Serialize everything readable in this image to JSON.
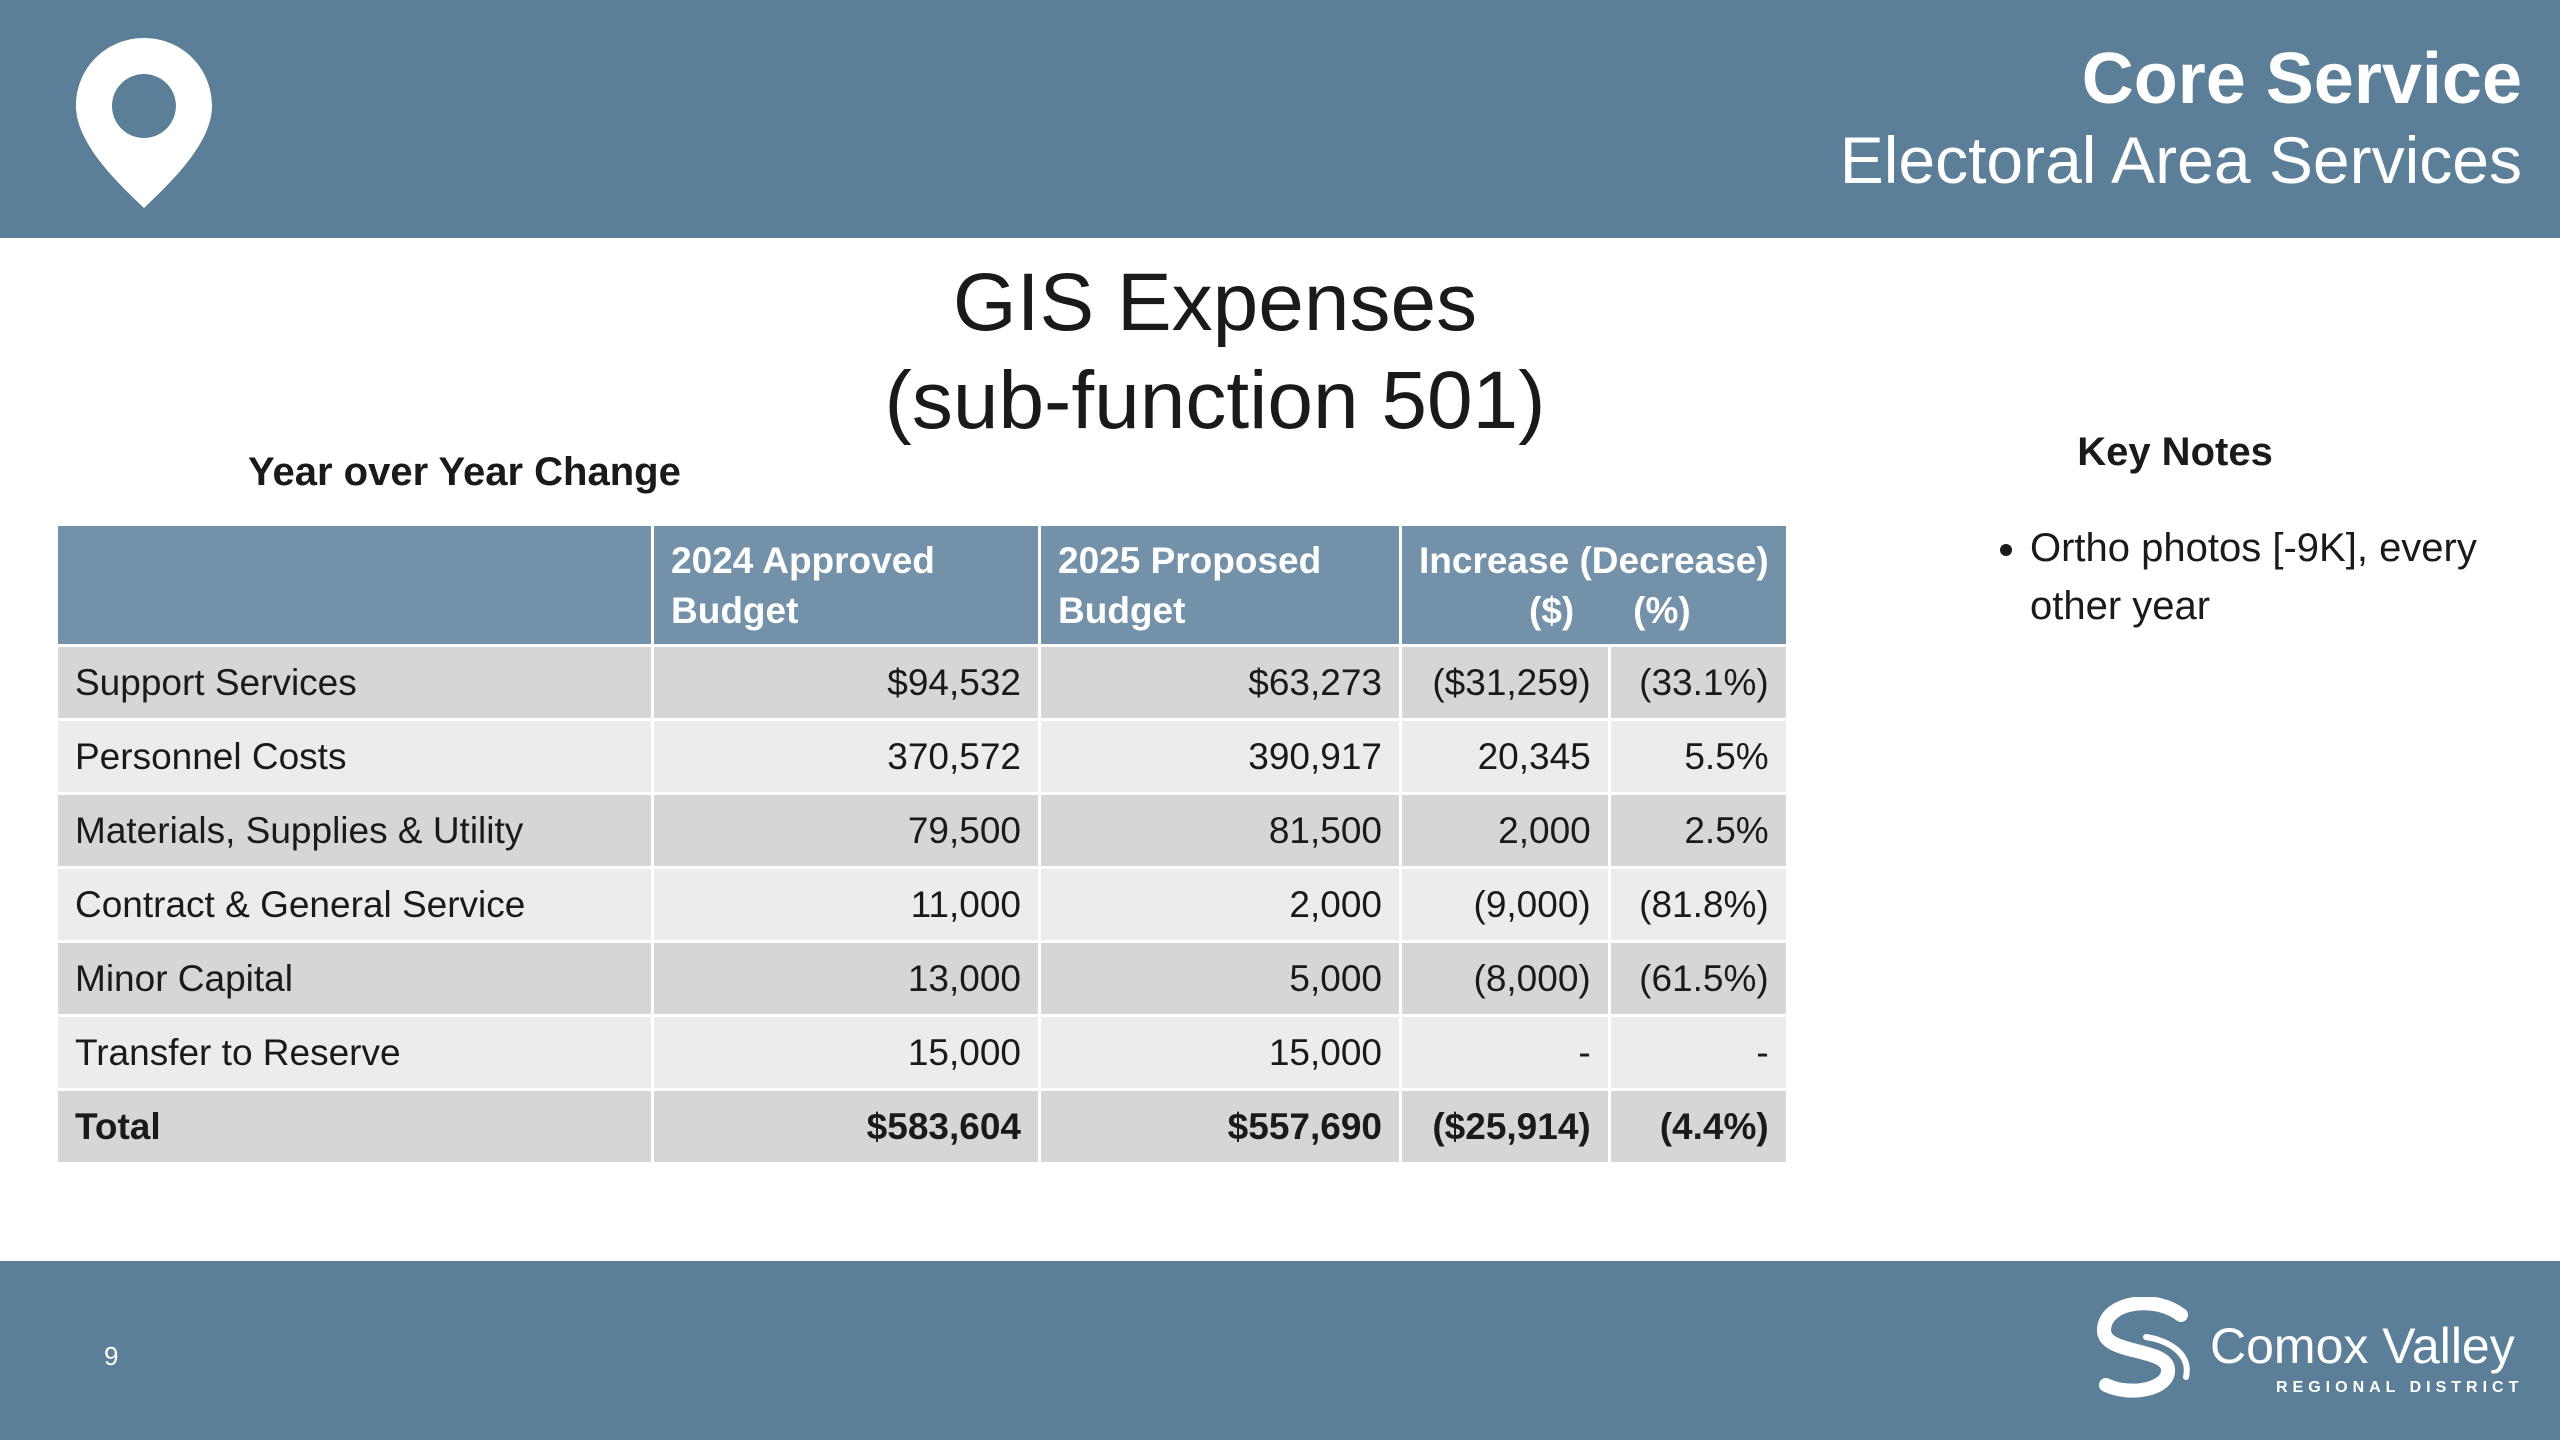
{
  "header": {
    "title": "Core Service",
    "subtitle": "Electoral Area Services"
  },
  "title": "GIS Expenses",
  "subtitle": "(sub-function 501)",
  "table": {
    "caption": "Year over Year Change",
    "columns": [
      "2024 Approved Budget",
      "2025 Proposed Budget",
      "Increase (Decrease)"
    ],
    "subcolumns": [
      "($)",
      "(%)"
    ],
    "rows": [
      [
        "Support Services",
        "$94,532",
        "$63,273",
        "($31,259)",
        "(33.1%)"
      ],
      [
        "Personnel Costs",
        "370,572",
        "390,917",
        "20,345",
        "5.5%"
      ],
      [
        "Materials, Supplies & Utility",
        "79,500",
        "81,500",
        "2,000",
        "2.5%"
      ],
      [
        "Contract & General Service",
        "11,000",
        "2,000",
        "(9,000)",
        "(81.8%)"
      ],
      [
        "Minor Capital",
        "13,000",
        "5,000",
        "(8,000)",
        "(61.5%)"
      ],
      [
        "Transfer to Reserve",
        "15,000",
        "15,000",
        "-",
        "-"
      ],
      [
        "Total",
        "$583,604",
        "$557,690",
        "($25,914)",
        "(4.4%)"
      ]
    ]
  },
  "notes": {
    "title": "Key Notes",
    "items": [
      "Ortho photos [-9K], every other year"
    ]
  },
  "footer": {
    "page": "9",
    "logo": "Comox Valley",
    "logo_sub": "REGIONAL DISTRICT"
  }
}
